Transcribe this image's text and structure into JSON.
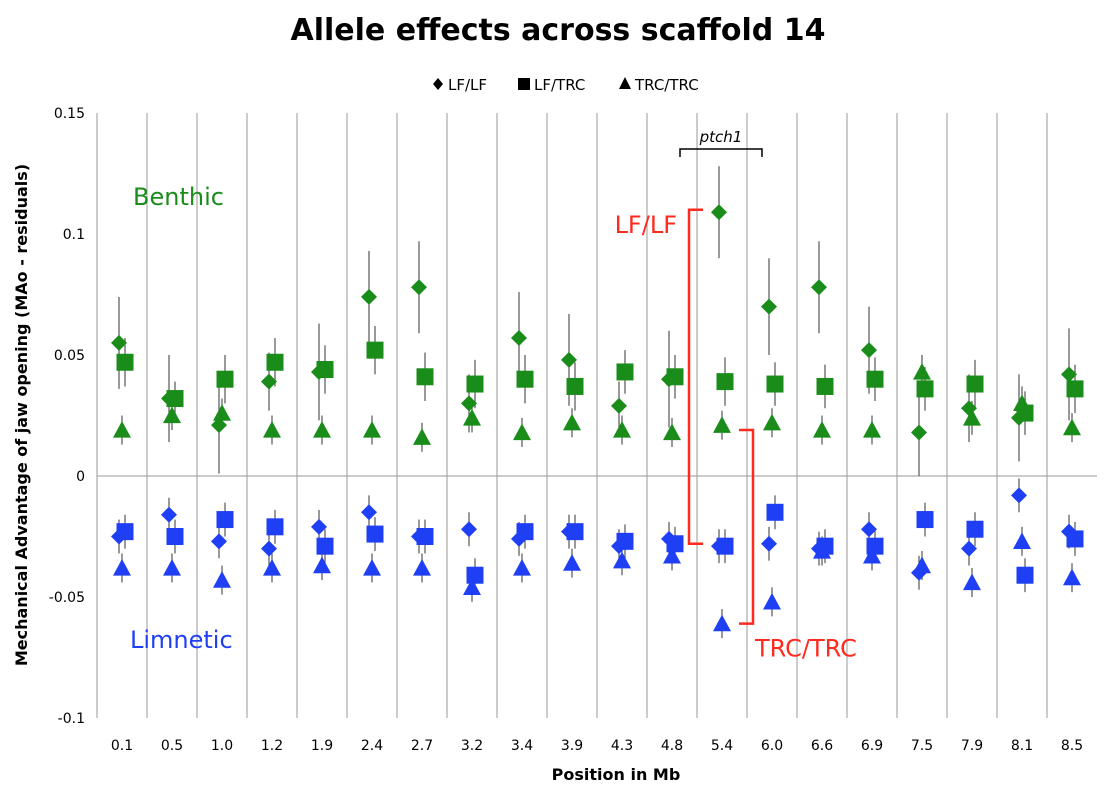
{
  "chart_data": {
    "type": "scatter",
    "title": "Allele effects across scaffold 14",
    "xlabel": "Position in Mb",
    "ylabel": "Mechanical Advantage of jaw opening  (MAo - residuals)",
    "ylim": [
      -0.1,
      0.15
    ],
    "yticks": [
      "0.15",
      "0.1",
      "0.05",
      "0",
      "-0.05",
      "-0.1"
    ],
    "grid": "vertical separators between categories",
    "legend_position": "top-center",
    "categories": [
      "0.1",
      "0.5",
      "1.0",
      "1.2",
      "1.9",
      "2.4",
      "2.7",
      "3.2",
      "3.4",
      "3.9",
      "4.3",
      "4.8",
      "5.4",
      "6.0",
      "6.6",
      "6.9",
      "7.5",
      "7.9",
      "8.1",
      "8.5"
    ],
    "groups": [
      {
        "name": "Benthic",
        "color": "#1a8c1a"
      },
      {
        "name": "Limnetic",
        "color": "#1f3ff5"
      }
    ],
    "series": [
      {
        "name": "LF/LF",
        "marker": "diamond",
        "group": "Benthic",
        "values": [
          0.055,
          0.032,
          0.021,
          0.039,
          0.043,
          0.074,
          0.078,
          0.03,
          0.057,
          0.048,
          0.029,
          0.04,
          0.109,
          0.07,
          0.078,
          0.052,
          0.018,
          0.028,
          0.024,
          0.042
        ],
        "err": [
          0.019,
          0.018,
          0.02,
          0.012,
          0.02,
          0.019,
          0.019,
          0.012,
          0.019,
          0.019,
          0.01,
          0.02,
          0.019,
          0.02,
          0.019,
          0.018,
          0.018,
          0.014,
          0.018,
          0.019
        ]
      },
      {
        "name": "LF/TRC",
        "marker": "square",
        "group": "Benthic",
        "values": [
          0.047,
          0.032,
          0.04,
          0.047,
          0.044,
          0.052,
          0.041,
          0.038,
          0.04,
          0.037,
          0.043,
          0.041,
          0.039,
          0.038,
          0.037,
          0.04,
          0.036,
          0.038,
          0.026,
          0.036
        ],
        "err": [
          0.01,
          0.007,
          0.01,
          0.01,
          0.01,
          0.01,
          0.01,
          0.01,
          0.01,
          0.01,
          0.009,
          0.009,
          0.01,
          0.009,
          0.009,
          0.009,
          0.009,
          0.01,
          0.009,
          0.01
        ]
      },
      {
        "name": "TRC/TRC",
        "marker": "triangle",
        "group": "Benthic",
        "values": [
          0.019,
          0.025,
          0.026,
          0.019,
          0.019,
          0.019,
          0.016,
          0.024,
          0.018,
          0.022,
          0.019,
          0.018,
          0.021,
          0.022,
          0.019,
          0.019,
          0.043,
          0.024,
          0.03,
          0.02
        ],
        "err": [
          0.006,
          0.006,
          0.006,
          0.006,
          0.006,
          0.006,
          0.006,
          0.006,
          0.006,
          0.006,
          0.006,
          0.006,
          0.006,
          0.006,
          0.006,
          0.006,
          0.007,
          0.007,
          0.007,
          0.006
        ]
      },
      {
        "name": "LF/LF",
        "marker": "diamond",
        "group": "Limnetic",
        "values": [
          -0.025,
          -0.016,
          -0.027,
          -0.03,
          -0.021,
          -0.015,
          -0.025,
          -0.022,
          -0.026,
          -0.023,
          -0.029,
          -0.026,
          -0.029,
          -0.028,
          -0.03,
          -0.022,
          -0.04,
          -0.03,
          -0.008,
          -0.023
        ],
        "err": [
          0.007,
          0.007,
          0.007,
          0.007,
          0.007,
          0.007,
          0.007,
          0.007,
          0.007,
          0.007,
          0.007,
          0.007,
          0.007,
          0.007,
          0.007,
          0.007,
          0.007,
          0.007,
          0.007,
          0.007
        ]
      },
      {
        "name": "LF/TRC",
        "marker": "square",
        "group": "Limnetic",
        "values": [
          -0.023,
          -0.025,
          -0.018,
          -0.021,
          -0.029,
          -0.024,
          -0.025,
          -0.041,
          -0.023,
          -0.023,
          -0.027,
          -0.028,
          -0.029,
          -0.015,
          -0.029,
          -0.029,
          -0.018,
          -0.022,
          -0.041,
          -0.026
        ],
        "err": [
          0.007,
          0.007,
          0.007,
          0.007,
          0.007,
          0.007,
          0.007,
          0.007,
          0.007,
          0.007,
          0.007,
          0.007,
          0.007,
          0.007,
          0.007,
          0.007,
          0.007,
          0.007,
          0.007,
          0.007
        ]
      },
      {
        "name": "TRC/TRC",
        "marker": "triangle",
        "group": "Limnetic",
        "values": [
          -0.038,
          -0.038,
          -0.043,
          -0.038,
          -0.037,
          -0.038,
          -0.038,
          -0.046,
          -0.038,
          -0.036,
          -0.035,
          -0.033,
          -0.061,
          -0.052,
          -0.031,
          -0.033,
          -0.037,
          -0.044,
          -0.027,
          -0.042
        ],
        "err": [
          0.006,
          0.006,
          0.006,
          0.006,
          0.006,
          0.006,
          0.006,
          0.006,
          0.006,
          0.006,
          0.006,
          0.006,
          0.006,
          0.006,
          0.006,
          0.006,
          0.006,
          0.006,
          0.006,
          0.006
        ]
      }
    ],
    "annotations": {
      "gene": {
        "label": "ptch1",
        "span_categories": [
          "4.8",
          "5.4"
        ]
      },
      "lf_bracket": {
        "label": "LF/LF",
        "color": "#ff2a1f",
        "from_value": 0.11,
        "to_value": -0.028,
        "between": [
          "4.8",
          "5.4"
        ]
      },
      "trc_bracket": {
        "label": "TRC/TRC",
        "color": "#ff2a1f",
        "from_value": 0.019,
        "to_value": -0.061,
        "between": [
          "5.4",
          "6.0"
        ]
      }
    }
  }
}
